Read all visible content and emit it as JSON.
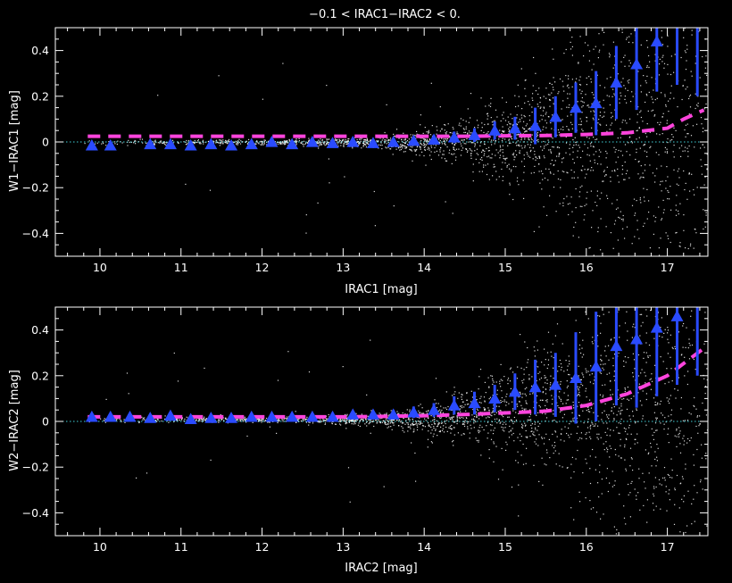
{
  "chart_data": [
    {
      "type": "scatter",
      "title": "−0.1 < IRAC1−IRAC2 < 0.",
      "xlabel": "IRAC1  [mag]",
      "ylabel": "W1−IRAC1  [mag]",
      "xlim": [
        9.45,
        17.5
      ],
      "ylim": [
        -0.5,
        0.5
      ],
      "xticks": [
        10,
        11,
        12,
        13,
        14,
        15,
        16,
        17
      ],
      "yticks": [
        -0.4,
        -0.2,
        0,
        0.2,
        0.4
      ],
      "xtick_labels": [
        "10",
        "11",
        "12",
        "13",
        "14",
        "15",
        "16",
        "17"
      ],
      "ytick_labels": [
        "−0.4",
        "−0.2",
        "0",
        "0.2",
        "0.4"
      ],
      "zero_line": 0,
      "scatter_color": "#ffffff",
      "binned_medians": {
        "color": "#2a4bff",
        "marker": "triangle",
        "x": [
          9.9,
          10.13,
          10.62,
          10.87,
          11.12,
          11.37,
          11.62,
          11.87,
          12.12,
          12.37,
          12.62,
          12.87,
          13.12,
          13.37,
          13.62,
          13.87,
          14.12,
          14.37,
          14.62,
          14.87,
          15.12,
          15.37,
          15.62,
          15.87,
          16.12,
          16.37,
          16.62,
          16.87,
          17.12,
          17.37
        ],
        "y": [
          -0.015,
          -0.015,
          -0.01,
          -0.01,
          -0.015,
          -0.01,
          -0.015,
          -0.01,
          0.0,
          -0.01,
          0.0,
          -0.005,
          0.0,
          -0.005,
          0.0,
          0.005,
          0.01,
          0.02,
          0.03,
          0.05,
          0.06,
          0.07,
          0.11,
          0.15,
          0.17,
          0.26,
          0.34,
          0.44,
          0.5,
          0.5
        ],
        "err": [
          0.003,
          0.003,
          0.003,
          0.003,
          0.003,
          0.003,
          0.003,
          0.003,
          0.005,
          0.005,
          0.008,
          0.01,
          0.012,
          0.015,
          0.015,
          0.02,
          0.02,
          0.025,
          0.03,
          0.04,
          0.05,
          0.08,
          0.09,
          0.11,
          0.14,
          0.16,
          0.2,
          0.22,
          0.25,
          0.3
        ]
      },
      "model_curve": {
        "color": "#ff44dd",
        "style": "dashed",
        "x": [
          9.85,
          10.5,
          11,
          11.5,
          12,
          12.5,
          13,
          13.5,
          14,
          14.5,
          15,
          15.5,
          16,
          16.5,
          17,
          17.2,
          17.45
        ],
        "y": [
          0.025,
          0.025,
          0.025,
          0.025,
          0.025,
          0.025,
          0.025,
          0.025,
          0.025,
          0.025,
          0.027,
          0.028,
          0.033,
          0.04,
          0.06,
          0.1,
          0.14
        ]
      }
    },
    {
      "type": "scatter",
      "title": "",
      "xlabel": "IRAC2  [mag]",
      "ylabel": "W2−IRAC2  [mag]",
      "xlim": [
        9.45,
        17.5
      ],
      "ylim": [
        -0.5,
        0.5
      ],
      "xticks": [
        10,
        11,
        12,
        13,
        14,
        15,
        16,
        17
      ],
      "yticks": [
        -0.4,
        -0.2,
        0,
        0.2,
        0.4
      ],
      "xtick_labels": [
        "10",
        "11",
        "12",
        "13",
        "14",
        "15",
        "16",
        "17"
      ],
      "ytick_labels": [
        "−0.4",
        "−0.2",
        "0",
        "0.2",
        "0.4"
      ],
      "zero_line": 0,
      "scatter_color": "#ffffff",
      "binned_medians": {
        "color": "#2a4bff",
        "marker": "triangle",
        "x": [
          9.9,
          10.13,
          10.37,
          10.62,
          10.87,
          11.12,
          11.37,
          11.62,
          11.87,
          12.12,
          12.37,
          12.62,
          12.87,
          13.12,
          13.37,
          13.62,
          13.87,
          14.12,
          14.37,
          14.62,
          14.87,
          15.12,
          15.37,
          15.62,
          15.87,
          16.12,
          16.37,
          16.62,
          16.87,
          17.12,
          17.37
        ],
        "y": [
          0.02,
          0.02,
          0.02,
          0.015,
          0.025,
          0.01,
          0.015,
          0.015,
          0.02,
          0.02,
          0.02,
          0.02,
          0.02,
          0.03,
          0.03,
          0.03,
          0.04,
          0.05,
          0.07,
          0.08,
          0.1,
          0.13,
          0.15,
          0.16,
          0.19,
          0.24,
          0.33,
          0.36,
          0.41,
          0.46,
          0.5
        ],
        "err": [
          0.003,
          0.003,
          0.003,
          0.003,
          0.003,
          0.003,
          0.003,
          0.005,
          0.005,
          0.005,
          0.006,
          0.008,
          0.01,
          0.012,
          0.015,
          0.02,
          0.025,
          0.03,
          0.04,
          0.05,
          0.06,
          0.08,
          0.12,
          0.14,
          0.2,
          0.24,
          0.26,
          0.3,
          0.3,
          0.3,
          0.3
        ]
      },
      "model_curve": {
        "color": "#ff44dd",
        "style": "dashed",
        "x": [
          9.85,
          10.5,
          11,
          11.5,
          12,
          12.5,
          13,
          13.5,
          14,
          14.5,
          15,
          15.5,
          16,
          16.5,
          17,
          17.45
        ],
        "y": [
          0.02,
          0.02,
          0.02,
          0.02,
          0.02,
          0.02,
          0.02,
          0.022,
          0.025,
          0.03,
          0.037,
          0.045,
          0.07,
          0.12,
          0.2,
          0.32
        ]
      }
    }
  ]
}
